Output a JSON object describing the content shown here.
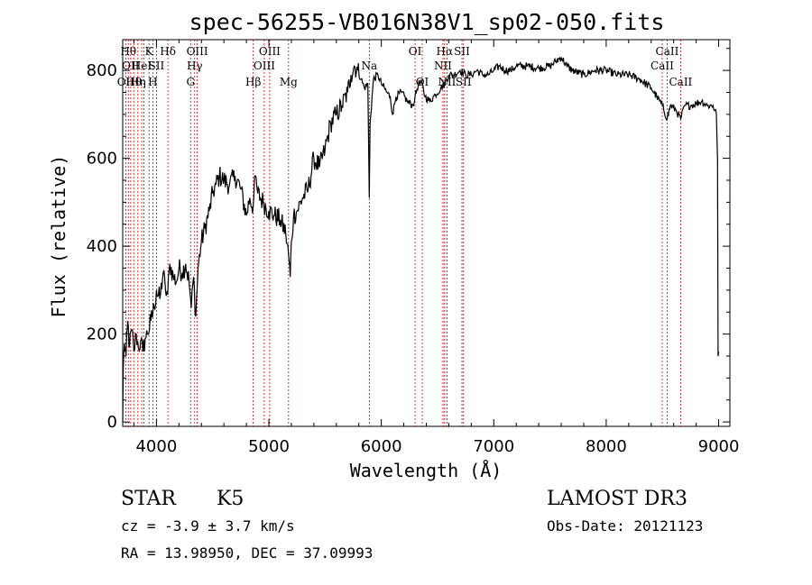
{
  "chart_data": {
    "type": "line",
    "title": "spec-56255-VB016N38V1_sp02-050.fits",
    "xlabel": "Wavelength (Å)",
    "ylabel": "Flux (relative)",
    "xlim": [
      3700,
      9100
    ],
    "ylim": [
      -10,
      870
    ],
    "x_ticks": [
      4000,
      5000,
      6000,
      7000,
      8000,
      9000
    ],
    "y_ticks": [
      0,
      200,
      400,
      600,
      800
    ],
    "spectrum_anchors": [
      [
        3700,
        0
      ],
      [
        3705,
        120
      ],
      [
        3715,
        180
      ],
      [
        3730,
        150
      ],
      [
        3745,
        230
      ],
      [
        3760,
        170
      ],
      [
        3780,
        210
      ],
      [
        3800,
        160
      ],
      [
        3820,
        200
      ],
      [
        3840,
        170
      ],
      [
        3860,
        185
      ],
      [
        3880,
        160
      ],
      [
        3900,
        190
      ],
      [
        3920,
        200
      ],
      [
        3950,
        230
      ],
      [
        3980,
        260
      ],
      [
        4000,
        300
      ],
      [
        4030,
        280
      ],
      [
        4060,
        340
      ],
      [
        4080,
        300
      ],
      [
        4100,
        290
      ],
      [
        4120,
        360
      ],
      [
        4150,
        330
      ],
      [
        4180,
        320
      ],
      [
        4200,
        350
      ],
      [
        4230,
        340
      ],
      [
        4260,
        360
      ],
      [
        4290,
        320
      ],
      [
        4310,
        260
      ],
      [
        4330,
        330
      ],
      [
        4350,
        240
      ],
      [
        4370,
        350
      ],
      [
        4400,
        410
      ],
      [
        4430,
        440
      ],
      [
        4470,
        480
      ],
      [
        4500,
        520
      ],
      [
        4530,
        540
      ],
      [
        4560,
        560
      ],
      [
        4600,
        550
      ],
      [
        4650,
        540
      ],
      [
        4700,
        560
      ],
      [
        4750,
        530
      ],
      [
        4800,
        470
      ],
      [
        4830,
        510
      ],
      [
        4860,
        490
      ],
      [
        4880,
        560
      ],
      [
        4900,
        520
      ],
      [
        4950,
        500
      ],
      [
        5000,
        480
      ],
      [
        5050,
        470
      ],
      [
        5100,
        460
      ],
      [
        5150,
        430
      ],
      [
        5175,
        380
      ],
      [
        5190,
        330
      ],
      [
        5200,
        410
      ],
      [
        5220,
        470
      ],
      [
        5250,
        480
      ],
      [
        5300,
        510
      ],
      [
        5350,
        530
      ],
      [
        5400,
        600
      ],
      [
        5450,
        580
      ],
      [
        5500,
        620
      ],
      [
        5550,
        680
      ],
      [
        5600,
        700
      ],
      [
        5650,
        720
      ],
      [
        5700,
        750
      ],
      [
        5730,
        790
      ],
      [
        5760,
        810
      ],
      [
        5790,
        800
      ],
      [
        5820,
        780
      ],
      [
        5850,
        760
      ],
      [
        5880,
        770
      ],
      [
        5893,
        510
      ],
      [
        5900,
        680
      ],
      [
        5930,
        780
      ],
      [
        5970,
        790
      ],
      [
        6000,
        770
      ],
      [
        6050,
        750
      ],
      [
        6080,
        740
      ],
      [
        6100,
        700
      ],
      [
        6130,
        740
      ],
      [
        6180,
        750
      ],
      [
        6230,
        730
      ],
      [
        6280,
        720
      ],
      [
        6300,
        740
      ],
      [
        6330,
        770
      ],
      [
        6360,
        770
      ],
      [
        6390,
        740
      ],
      [
        6430,
        730
      ],
      [
        6480,
        745
      ],
      [
        6530,
        760
      ],
      [
        6563,
        770
      ],
      [
        6600,
        790
      ],
      [
        6650,
        790
      ],
      [
        6700,
        800
      ],
      [
        6750,
        790
      ],
      [
        6800,
        790
      ],
      [
        6850,
        800
      ],
      [
        6900,
        790
      ],
      [
        6950,
        790
      ],
      [
        7000,
        800
      ],
      [
        7050,
        810
      ],
      [
        7100,
        800
      ],
      [
        7150,
        800
      ],
      [
        7200,
        810
      ],
      [
        7300,
        810
      ],
      [
        7400,
        805
      ],
      [
        7500,
        810
      ],
      [
        7550,
        820
      ],
      [
        7600,
        830
      ],
      [
        7650,
        810
      ],
      [
        7700,
        800
      ],
      [
        7800,
        790
      ],
      [
        7900,
        800
      ],
      [
        8000,
        800
      ],
      [
        8100,
        790
      ],
      [
        8200,
        790
      ],
      [
        8300,
        780
      ],
      [
        8400,
        760
      ],
      [
        8450,
        740
      ],
      [
        8500,
        720
      ],
      [
        8542,
        690
      ],
      [
        8570,
        720
      ],
      [
        8620,
        710
      ],
      [
        8662,
        690
      ],
      [
        8700,
        720
      ],
      [
        8750,
        720
      ],
      [
        8800,
        725
      ],
      [
        8850,
        730
      ],
      [
        8900,
        720
      ],
      [
        8950,
        720
      ],
      [
        8980,
        700
      ],
      [
        8990,
        600
      ],
      [
        8995,
        150
      ],
      [
        9000,
        160
      ]
    ],
    "line_markers": [
      {
        "wave": 3727,
        "label": "OII",
        "row": 3
      },
      {
        "wave": 3750,
        "label": "Hθ",
        "row": 1
      },
      {
        "wave": 3771,
        "label": "OII",
        "row": 2
      },
      {
        "wave": 3798,
        "label": "Hθ",
        "row": 3
      },
      {
        "wave": 3835,
        "label": "Hη",
        "row": 3
      },
      {
        "wave": 3869,
        "label": "HeI",
        "row": 2
      },
      {
        "wave": 3889,
        "label": "",
        "row": 0
      },
      {
        "wave": 3934,
        "label": "K",
        "row": 1
      },
      {
        "wave": 3968,
        "label": "H",
        "row": 3
      },
      {
        "wave": 4000,
        "label": "SII",
        "row": 2
      },
      {
        "wave": 4102,
        "label": "Hδ",
        "row": 1
      },
      {
        "wave": 4304,
        "label": "G",
        "row": 3
      },
      {
        "wave": 4340,
        "label": "Hγ",
        "row": 2
      },
      {
        "wave": 4363,
        "label": "OIII",
        "row": 1
      },
      {
        "wave": 4861,
        "label": "Hβ",
        "row": 3
      },
      {
        "wave": 4959,
        "label": "OIII",
        "row": 2
      },
      {
        "wave": 5007,
        "label": "OIII",
        "row": 1
      },
      {
        "wave": 5175,
        "label": "Mg",
        "row": 3
      },
      {
        "wave": 5893,
        "label": "Na",
        "row": 2
      },
      {
        "wave": 6300,
        "label": "OI",
        "row": 1
      },
      {
        "wave": 6364,
        "label": "OI",
        "row": 3
      },
      {
        "wave": 6548,
        "label": "NII",
        "row": 2
      },
      {
        "wave": 6563,
        "label": "Hα",
        "row": 1
      },
      {
        "wave": 6584,
        "label": "NII",
        "row": 3
      },
      {
        "wave": 6717,
        "label": "SII",
        "row": 1
      },
      {
        "wave": 6731,
        "label": "SII",
        "row": 3
      },
      {
        "wave": 8498,
        "label": "CaII",
        "row": 2
      },
      {
        "wave": 8542,
        "label": "CaII",
        "row": 1
      },
      {
        "wave": 8662,
        "label": "CaII",
        "row": 3
      }
    ]
  },
  "info": {
    "class": "STAR",
    "subclass": "K5",
    "survey": "LAMOST DR3",
    "cz": "cz = -3.9 ± 3.7 km/s",
    "obs_date": "Obs-Date: 20121123",
    "coords": "RA =  13.98950, DEC =  37.09993"
  },
  "colors": {
    "spectrum": "#000000",
    "marker": "#cc0000",
    "axis": "#000000"
  }
}
